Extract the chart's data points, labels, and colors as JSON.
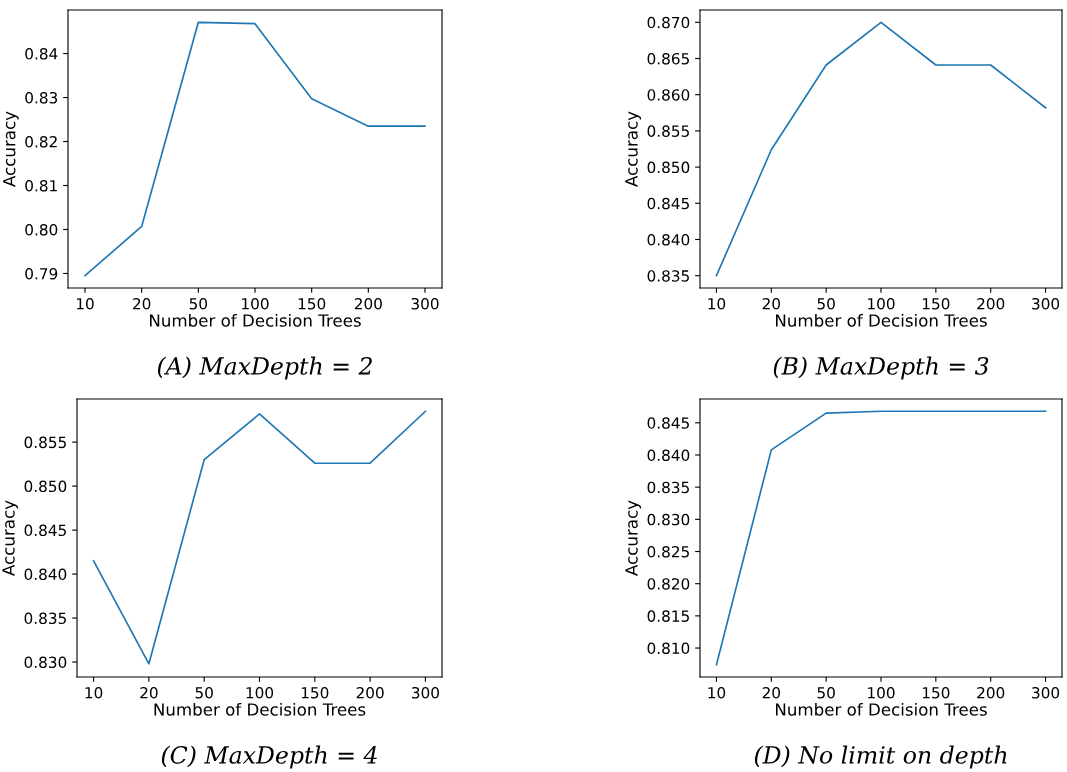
{
  "chart_data": [
    {
      "type": "line",
      "title": "(A) MaxDepth = 2",
      "xlabel": "Number of Decision Trees",
      "ylabel": "Accuracy",
      "categories": [
        "10",
        "20",
        "50",
        "100",
        "150",
        "200",
        "300"
      ],
      "series": [
        {
          "color": "#1f77b4",
          "values": [
            0.7895,
            0.8007,
            0.8471,
            0.8468,
            0.8297,
            0.8235,
            0.8235
          ]
        }
      ],
      "ylim": [
        0.7867,
        0.8499
      ],
      "yticks": [
        {
          "value": 0.79,
          "label": "0.79"
        },
        {
          "value": 0.8,
          "label": "0.80"
        },
        {
          "value": 0.81,
          "label": "0.81"
        },
        {
          "value": 0.82,
          "label": "0.82"
        },
        {
          "value": 0.83,
          "label": "0.83"
        },
        {
          "value": 0.84,
          "label": "0.84"
        }
      ],
      "grid": false
    },
    {
      "type": "line",
      "title": "(B) MaxDepth = 3",
      "xlabel": "Number of Decision Trees",
      "ylabel": "Accuracy",
      "categories": [
        "10",
        "20",
        "50",
        "100",
        "150",
        "200",
        "300"
      ],
      "series": [
        {
          "color": "#1f77b4",
          "values": [
            0.835,
            0.8524,
            0.8641,
            0.87,
            0.8641,
            0.8641,
            0.8582
          ]
        }
      ],
      "ylim": [
        0.8333,
        0.8717
      ],
      "yticks": [
        {
          "value": 0.835,
          "label": "0.835"
        },
        {
          "value": 0.84,
          "label": "0.840"
        },
        {
          "value": 0.845,
          "label": "0.845"
        },
        {
          "value": 0.85,
          "label": "0.850"
        },
        {
          "value": 0.855,
          "label": "0.855"
        },
        {
          "value": 0.86,
          "label": "0.860"
        },
        {
          "value": 0.865,
          "label": "0.865"
        },
        {
          "value": 0.87,
          "label": "0.870"
        }
      ],
      "grid": false
    },
    {
      "type": "line",
      "title": "(C) MaxDepth = 4",
      "xlabel": "Number of Decision Trees",
      "ylabel": "Accuracy",
      "categories": [
        "10",
        "20",
        "50",
        "100",
        "150",
        "200",
        "300"
      ],
      "series": [
        {
          "color": "#1f77b4",
          "values": [
            0.8415,
            0.8298,
            0.853,
            0.8582,
            0.8526,
            0.8526,
            0.8585
          ]
        }
      ],
      "ylim": [
        0.8283,
        0.8599
      ],
      "yticks": [
        {
          "value": 0.83,
          "label": "0.830"
        },
        {
          "value": 0.835,
          "label": "0.835"
        },
        {
          "value": 0.84,
          "label": "0.840"
        },
        {
          "value": 0.845,
          "label": "0.845"
        },
        {
          "value": 0.85,
          "label": "0.850"
        },
        {
          "value": 0.855,
          "label": "0.855"
        }
      ],
      "grid": false
    },
    {
      "type": "line",
      "title": "(D) No limit on depth",
      "xlabel": "Number of Decision Trees",
      "ylabel": "Accuracy",
      "categories": [
        "10",
        "20",
        "50",
        "100",
        "150",
        "200",
        "300"
      ],
      "series": [
        {
          "color": "#1f77b4",
          "values": [
            0.8074,
            0.8408,
            0.8465,
            0.8468,
            0.8468,
            0.8468,
            0.8468
          ]
        }
      ],
      "ylim": [
        0.8055,
        0.8487
      ],
      "yticks": [
        {
          "value": 0.81,
          "label": "0.810"
        },
        {
          "value": 0.815,
          "label": "0.815"
        },
        {
          "value": 0.82,
          "label": "0.820"
        },
        {
          "value": 0.825,
          "label": "0.825"
        },
        {
          "value": 0.83,
          "label": "0.830"
        },
        {
          "value": 0.835,
          "label": "0.835"
        },
        {
          "value": 0.84,
          "label": "0.840"
        },
        {
          "value": 0.845,
          "label": "0.845"
        }
      ],
      "grid": false
    }
  ]
}
